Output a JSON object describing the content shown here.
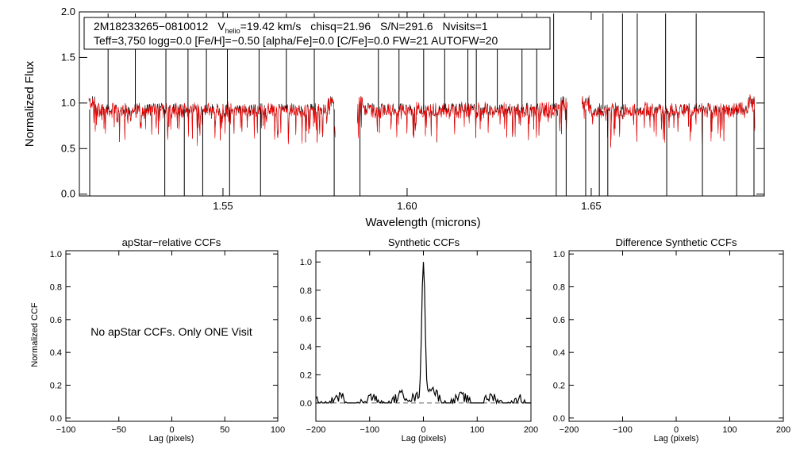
{
  "colors": {
    "observed": "#000000",
    "model": "#ff0000",
    "baseline": "#666666"
  },
  "chart_data": [
    {
      "id": "spectrum",
      "type": "line",
      "title": "",
      "xlabel": "Wavelength (microns)",
      "ylabel": "Normalized Flux",
      "xlim": [
        1.511,
        1.697
      ],
      "ylim": [
        -0.02,
        2.0
      ],
      "xticks": [
        1.55,
        1.6,
        1.65
      ],
      "xtick_labels": [
        "1.55",
        "1.60",
        "1.65"
      ],
      "yticks": [
        0.0,
        0.5,
        1.0,
        1.5,
        2.0
      ],
      "ytick_labels": [
        "0.0",
        "0.5",
        "1.0",
        "1.5",
        "2.0"
      ],
      "annotation": {
        "star_id": "2M18233265−0810012",
        "v_prefix": "V",
        "v_subscript": "helio",
        "v_value": "=19.42 km/s",
        "chisq": "chisq=21.96",
        "snr": "S/N=291.6",
        "nvisits": "Nvisits=1",
        "line2": "Teff=3,750 logg=0.0 [Fe/H]=−0.50 [alpha/Fe]=0.0 [C/Fe]=0.0 FW=21 AUTOFW=20"
      },
      "chips": [
        [
          1.5135,
          1.5805
        ],
        [
          1.5865,
          1.6435
        ],
        [
          1.6475,
          1.6945
        ]
      ],
      "continuum": 0.93,
      "spikes": [
        1.5188,
        1.5262,
        1.5345,
        1.5405,
        1.5455,
        1.5512,
        1.5598,
        1.5672,
        1.5748,
        1.5922,
        1.5978,
        1.6045,
        1.6102,
        1.6165,
        1.6188,
        1.6245,
        1.6312,
        1.6352,
        1.6398,
        1.6532,
        1.6585,
        1.6625,
        1.6702,
        1.6785
      ],
      "dips": [
        1.5138,
        1.5342,
        1.5395,
        1.5445,
        1.5518,
        1.5602,
        1.5802,
        1.5872,
        1.6405,
        1.6432,
        1.6485,
        1.6522,
        1.6545,
        1.6705,
        1.6802,
        1.6895,
        1.6942
      ]
    },
    {
      "id": "apstar",
      "type": "line",
      "title": "apStar−relative CCFs",
      "xlabel": "Lag (pixels)",
      "ylabel": "Normalized CCF",
      "xlim": [
        -100,
        100
      ],
      "ylim": [
        -0.02,
        1.02
      ],
      "xticks": [
        -100,
        -50,
        0,
        50,
        100
      ],
      "xtick_labels": [
        "−100",
        "−50",
        "0",
        "50",
        "100"
      ],
      "yticks": [
        0.0,
        0.2,
        0.4,
        0.6,
        0.8,
        1.0
      ],
      "ytick_labels": [
        "0.0",
        "0.2",
        "0.4",
        "0.6",
        "0.8",
        "1.0"
      ],
      "message": "No apStar CCFs.  Only ONE Visit"
    },
    {
      "id": "synthetic",
      "type": "line",
      "title": "Synthetic CCFs",
      "xlabel": "Lag (pixels)",
      "xlim": [
        -200,
        200
      ],
      "ylim": [
        -0.13,
        1.08
      ],
      "xticks": [
        -200,
        -100,
        0,
        100,
        200
      ],
      "xtick_labels": [
        "−200",
        "−100",
        "0",
        "100",
        "200"
      ],
      "yticks": [
        0.0,
        0.2,
        0.4,
        0.6,
        0.8,
        1.0
      ],
      "ytick_labels": [
        "0.0",
        "0.2",
        "0.4",
        "0.6",
        "0.8",
        "1.0"
      ],
      "baseline": 0.0,
      "peak": {
        "x": 0,
        "y": 1.0
      }
    },
    {
      "id": "difference",
      "type": "line",
      "title": "Difference Synthetic CCFs",
      "xlabel": "Lag (pixels)",
      "xlim": [
        -200,
        200
      ],
      "ylim": [
        -0.02,
        1.02
      ],
      "xticks": [
        -200,
        -100,
        0,
        100,
        200
      ],
      "xtick_labels": [
        "−200",
        "−100",
        "0",
        "100",
        "200"
      ],
      "yticks": [
        0.0,
        0.2,
        0.4,
        0.6,
        0.8,
        1.0
      ],
      "ytick_labels": [
        "0.0",
        "0.2",
        "0.4",
        "0.6",
        "0.8",
        "1.0"
      ]
    }
  ]
}
